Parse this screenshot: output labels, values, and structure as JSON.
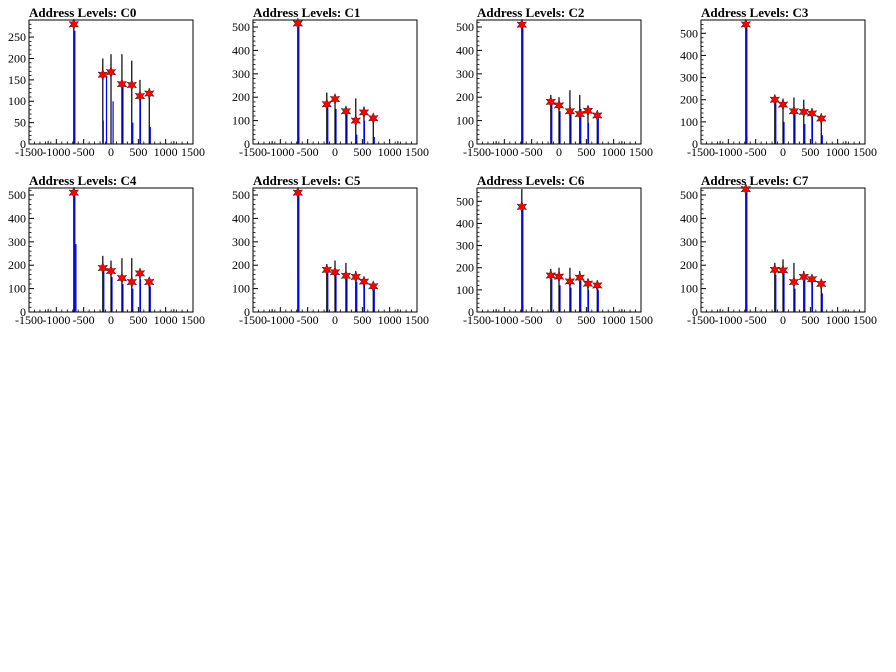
{
  "chart_data": [
    {
      "type": "bar",
      "title": "Address Levels: C0",
      "xlim": [
        -1500,
        1500
      ],
      "ylim": [
        0,
        290
      ],
      "yticks": [
        0,
        50,
        100,
        150,
        200,
        250
      ],
      "xticks": [
        -1500,
        -1000,
        -500,
        0,
        500,
        1000,
        1500
      ],
      "tick_labels_x": [
        "-1500",
        "-1000",
        "-500",
        "0",
        "500",
        "1000",
        "1500"
      ],
      "tick_labels_y": [
        "0",
        "50",
        "100",
        "150",
        "200",
        "250"
      ],
      "spikes_black": [
        [
          -680,
          280
        ],
        [
          -150,
          200
        ],
        [
          0,
          210
        ],
        [
          200,
          210
        ],
        [
          380,
          195
        ],
        [
          530,
          150
        ],
        [
          700,
          125
        ]
      ],
      "spikes_blue": [
        [
          -680,
          265
        ],
        [
          -160,
          55
        ],
        [
          -100,
          160
        ],
        [
          20,
          100
        ],
        [
          200,
          140
        ],
        [
          380,
          50
        ],
        [
          520,
          110
        ],
        [
          700,
          40
        ]
      ],
      "peaks": [
        [
          -680,
          280
        ],
        [
          -150,
          162
        ],
        [
          0,
          168
        ],
        [
          200,
          140
        ],
        [
          380,
          138
        ],
        [
          530,
          112
        ],
        [
          700,
          118
        ]
      ]
    },
    {
      "type": "bar",
      "title": "Address Levels: C1",
      "xlim": [
        -1500,
        1500
      ],
      "ylim": [
        0,
        530
      ],
      "yticks": [
        0,
        100,
        200,
        300,
        400,
        500
      ],
      "xticks": [
        -1500,
        -1000,
        -500,
        0,
        500,
        1000,
        1500
      ],
      "tick_labels_x": [
        "-1500",
        "-1000",
        "-500",
        "0",
        "500",
        "1000",
        "1500"
      ],
      "tick_labels_y": [
        "0",
        "100",
        "200",
        "300",
        "400",
        "500"
      ],
      "spikes_black": [
        [
          -680,
          515
        ],
        [
          -150,
          220
        ],
        [
          0,
          210
        ],
        [
          200,
          160
        ],
        [
          380,
          195
        ],
        [
          530,
          160
        ],
        [
          700,
          120
        ]
      ],
      "spikes_blue": [
        [
          -680,
          515
        ],
        [
          -680,
          30
        ],
        [
          -160,
          40
        ],
        [
          -150,
          170
        ],
        [
          0,
          150
        ],
        [
          200,
          130
        ],
        [
          380,
          40
        ],
        [
          520,
          100
        ],
        [
          700,
          30
        ]
      ],
      "peaks": [
        [
          -680,
          515
        ],
        [
          -150,
          170
        ],
        [
          0,
          192
        ],
        [
          200,
          140
        ],
        [
          380,
          100
        ],
        [
          530,
          135
        ],
        [
          700,
          110
        ]
      ]
    },
    {
      "type": "bar",
      "title": "Address Levels: C2",
      "xlim": [
        -1500,
        1500
      ],
      "ylim": [
        0,
        530
      ],
      "yticks": [
        0,
        100,
        200,
        300,
        400,
        500
      ],
      "xticks": [
        -1500,
        -1000,
        -500,
        0,
        500,
        1000,
        1500
      ],
      "tick_labels_x": [
        "-1500",
        "-1000",
        "-500",
        "0",
        "500",
        "1000",
        "1500"
      ],
      "tick_labels_y": [
        "0",
        "100",
        "200",
        "300",
        "400",
        "500"
      ],
      "spikes_black": [
        [
          -680,
          510
        ],
        [
          -150,
          210
        ],
        [
          0,
          200
        ],
        [
          200,
          230
        ],
        [
          380,
          210
        ],
        [
          530,
          165
        ],
        [
          700,
          120
        ]
      ],
      "spikes_blue": [
        [
          -680,
          510
        ],
        [
          -160,
          110
        ],
        [
          -150,
          180
        ],
        [
          0,
          140
        ],
        [
          200,
          130
        ],
        [
          380,
          150
        ],
        [
          520,
          90
        ],
        [
          700,
          110
        ]
      ],
      "peaks": [
        [
          -680,
          510
        ],
        [
          -150,
          180
        ],
        [
          0,
          165
        ],
        [
          200,
          140
        ],
        [
          380,
          128
        ],
        [
          530,
          142
        ],
        [
          700,
          122
        ]
      ]
    },
    {
      "type": "bar",
      "title": "Address Levels: C3",
      "xlim": [
        -1500,
        1500
      ],
      "ylim": [
        0,
        560
      ],
      "yticks": [
        0,
        100,
        200,
        300,
        400,
        500
      ],
      "xticks": [
        -1500,
        -1000,
        -500,
        0,
        500,
        1000,
        1500
      ],
      "tick_labels_x": [
        "-1500",
        "-1000",
        "-500",
        "0",
        "500",
        "1000",
        "1500"
      ],
      "tick_labels_y": [
        "0",
        "100",
        "200",
        "300",
        "400",
        "500"
      ],
      "spikes_black": [
        [
          -680,
          540
        ],
        [
          -150,
          210
        ],
        [
          0,
          205
        ],
        [
          200,
          210
        ],
        [
          380,
          200
        ],
        [
          530,
          160
        ],
        [
          700,
          120
        ]
      ],
      "spikes_blue": [
        [
          -680,
          540
        ],
        [
          -680,
          40
        ],
        [
          -150,
          190
        ],
        [
          0,
          100
        ],
        [
          200,
          140
        ],
        [
          380,
          90
        ],
        [
          520,
          120
        ],
        [
          700,
          40
        ]
      ],
      "peaks": [
        [
          -680,
          540
        ],
        [
          -150,
          200
        ],
        [
          0,
          178
        ],
        [
          200,
          148
        ],
        [
          380,
          145
        ],
        [
          530,
          138
        ],
        [
          700,
          115
        ]
      ]
    },
    {
      "type": "bar",
      "title": "Address Levels: C4",
      "xlim": [
        -1500,
        1500
      ],
      "ylim": [
        0,
        530
      ],
      "yticks": [
        0,
        100,
        200,
        300,
        400,
        500
      ],
      "xticks": [
        -1500,
        -1000,
        -500,
        0,
        500,
        1000,
        1500
      ],
      "tick_labels_x": [
        "-1500",
        "-1000",
        "-500",
        "0",
        "500",
        "1000",
        "1500"
      ],
      "tick_labels_y": [
        "0",
        "100",
        "200",
        "300",
        "400",
        "500"
      ],
      "spikes_black": [
        [
          -680,
          510
        ],
        [
          -150,
          240
        ],
        [
          0,
          220
        ],
        [
          200,
          230
        ],
        [
          380,
          230
        ],
        [
          530,
          175
        ],
        [
          700,
          135
        ]
      ],
      "spikes_blue": [
        [
          -680,
          510
        ],
        [
          -660,
          290
        ],
        [
          -150,
          180
        ],
        [
          0,
          150
        ],
        [
          200,
          120
        ],
        [
          380,
          100
        ],
        [
          520,
          140
        ],
        [
          700,
          110
        ]
      ],
      "peaks": [
        [
          -680,
          510
        ],
        [
          -150,
          188
        ],
        [
          0,
          175
        ],
        [
          200,
          145
        ],
        [
          380,
          128
        ],
        [
          530,
          165
        ],
        [
          700,
          128
        ]
      ]
    },
    {
      "type": "bar",
      "title": "Address Levels: C5",
      "xlim": [
        -1500,
        1500
      ],
      "ylim": [
        0,
        530
      ],
      "yticks": [
        0,
        100,
        200,
        300,
        400,
        500
      ],
      "xticks": [
        -1500,
        -1000,
        -500,
        0,
        500,
        1000,
        1500
      ],
      "tick_labels_x": [
        "-1500",
        "-1000",
        "-500",
        "0",
        "500",
        "1000",
        "1500"
      ],
      "tick_labels_y": [
        "0",
        "100",
        "200",
        "300",
        "400",
        "500"
      ],
      "spikes_black": [
        [
          -680,
          510
        ],
        [
          -150,
          205
        ],
        [
          0,
          220
        ],
        [
          200,
          210
        ],
        [
          380,
          175
        ],
        [
          530,
          140
        ],
        [
          700,
          115
        ]
      ],
      "spikes_blue": [
        [
          -680,
          510
        ],
        [
          -690,
          140
        ],
        [
          -150,
          190
        ],
        [
          0,
          170
        ],
        [
          200,
          150
        ],
        [
          380,
          130
        ],
        [
          520,
          120
        ],
        [
          700,
          100
        ]
      ],
      "peaks": [
        [
          -680,
          510
        ],
        [
          -150,
          180
        ],
        [
          0,
          170
        ],
        [
          200,
          155
        ],
        [
          380,
          150
        ],
        [
          530,
          130
        ],
        [
          700,
          110
        ]
      ]
    },
    {
      "type": "bar",
      "title": "Address Levels: C6",
      "xlim": [
        -1500,
        1500
      ],
      "ylim": [
        0,
        560
      ],
      "yticks": [
        0,
        100,
        200,
        300,
        400,
        500
      ],
      "xticks": [
        -1500,
        -1000,
        -500,
        0,
        500,
        1000,
        1500
      ],
      "tick_labels_x": [
        "-1500",
        "-1000",
        "-500",
        "0",
        "500",
        "1000",
        "1500"
      ],
      "tick_labels_y": [
        "0",
        "100",
        "200",
        "300",
        "400",
        "500"
      ],
      "spikes_black": [
        [
          -680,
          555
        ],
        [
          -150,
          195
        ],
        [
          0,
          200
        ],
        [
          200,
          200
        ],
        [
          380,
          185
        ],
        [
          530,
          150
        ],
        [
          700,
          120
        ]
      ],
      "spikes_blue": [
        [
          -680,
          480
        ],
        [
          -680,
          30
        ],
        [
          -150,
          150
        ],
        [
          0,
          120
        ],
        [
          200,
          110
        ],
        [
          380,
          140
        ],
        [
          520,
          100
        ],
        [
          700,
          100
        ]
      ],
      "peaks": [
        [
          -680,
          475
        ],
        [
          -150,
          165
        ],
        [
          0,
          160
        ],
        [
          200,
          138
        ],
        [
          380,
          155
        ],
        [
          530,
          128
        ],
        [
          700,
          120
        ]
      ]
    },
    {
      "type": "bar",
      "title": "Address Levels: C7",
      "xlim": [
        -1500,
        1500
      ],
      "ylim": [
        0,
        530
      ],
      "yticks": [
        0,
        100,
        200,
        300,
        400,
        500
      ],
      "xticks": [
        -1500,
        -1000,
        -500,
        0,
        500,
        1000,
        1500
      ],
      "tick_labels_x": [
        "-1500",
        "-1000",
        "-500",
        "0",
        "500",
        "1000",
        "1500"
      ],
      "tick_labels_y": [
        "0",
        "100",
        "200",
        "300",
        "400",
        "500"
      ],
      "spikes_black": [
        [
          -680,
          525
        ],
        [
          -150,
          210
        ],
        [
          0,
          225
        ],
        [
          200,
          210
        ],
        [
          380,
          175
        ],
        [
          530,
          150
        ],
        [
          700,
          110
        ]
      ],
      "spikes_blue": [
        [
          -680,
          525
        ],
        [
          -680,
          30
        ],
        [
          -150,
          160
        ],
        [
          0,
          180
        ],
        [
          200,
          100
        ],
        [
          380,
          140
        ],
        [
          520,
          130
        ],
        [
          700,
          80
        ]
      ],
      "peaks": [
        [
          -680,
          525
        ],
        [
          -150,
          180
        ],
        [
          0,
          178
        ],
        [
          200,
          128
        ],
        [
          380,
          150
        ],
        [
          530,
          140
        ],
        [
          700,
          120
        ]
      ]
    }
  ]
}
